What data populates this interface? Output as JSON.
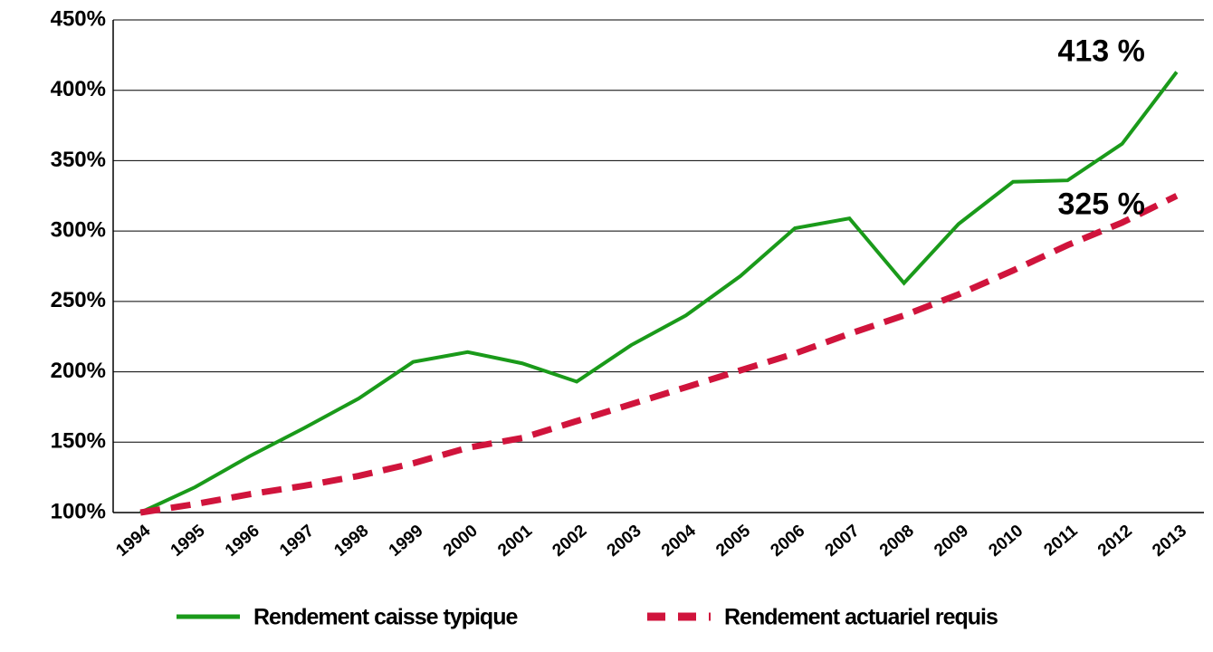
{
  "chart_data": {
    "type": "line",
    "categories": [
      "1994",
      "1995",
      "1996",
      "1997",
      "1998",
      "1999",
      "2000",
      "2001",
      "2002",
      "2003",
      "2004",
      "2005",
      "2006",
      "2007",
      "2008",
      "2009",
      "2010",
      "2011",
      "2012",
      "2013"
    ],
    "series": [
      {
        "name": "Rendement caisse typique",
        "color": "#1a9a1a",
        "dash": false,
        "values": [
          100,
          118,
          140,
          160,
          181,
          207,
          214,
          206,
          193,
          219,
          240,
          268,
          302,
          309,
          263,
          305,
          335,
          336,
          362,
          413
        ],
        "value_labels": [
          null,
          null,
          null,
          null,
          null,
          null,
          null,
          null,
          null,
          null,
          null,
          null,
          null,
          null,
          null,
          null,
          null,
          null,
          null,
          "413 %"
        ]
      },
      {
        "name": "Rendement actuariel requis",
        "color": "#d0143c",
        "dash": true,
        "values": [
          100,
          106,
          113,
          119,
          126,
          135,
          146,
          153,
          165,
          177,
          189,
          201,
          213,
          227,
          240,
          255,
          272,
          290,
          306,
          325
        ],
        "value_labels": [
          null,
          null,
          null,
          null,
          null,
          null,
          null,
          null,
          null,
          null,
          null,
          null,
          null,
          null,
          null,
          null,
          null,
          null,
          null,
          "325 %"
        ]
      }
    ],
    "ylim": [
      100,
      450
    ],
    "yticks": [
      {
        "value": 100,
        "label": "100%"
      },
      {
        "value": 150,
        "label": "150%"
      },
      {
        "value": 200,
        "label": "200%"
      },
      {
        "value": 250,
        "label": "250%"
      },
      {
        "value": 300,
        "label": "300%"
      },
      {
        "value": 350,
        "label": "350%"
      },
      {
        "value": 400,
        "label": "400%"
      },
      {
        "value": 450,
        "label": "450%"
      }
    ],
    "grid": true
  }
}
